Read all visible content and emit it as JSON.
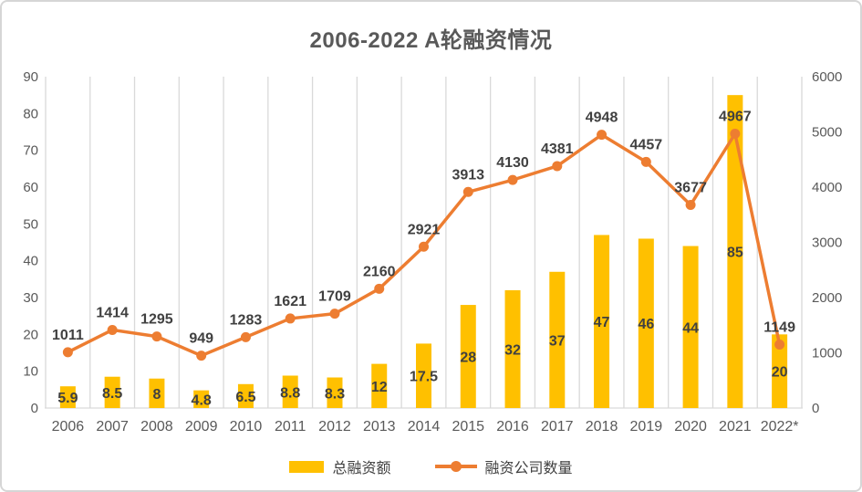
{
  "title": "2006-2022 A轮融资情况",
  "colors": {
    "bar": "#FFC000",
    "line": "#ED7D31",
    "gridline": "#D9D9D9",
    "axis_text": "#595959",
    "data_label_text": "#404040",
    "border": "#D6D6D6"
  },
  "chart_data": {
    "type": "bar",
    "subtype": "combo-bar-line-dual-axis",
    "title": "2006-2022 A轮融资情况",
    "categories": [
      "2006",
      "2007",
      "2008",
      "2009",
      "2010",
      "2011",
      "2012",
      "2013",
      "2014",
      "2015",
      "2016",
      "2017",
      "2018",
      "2019",
      "2020",
      "2021",
      "2022*"
    ],
    "series": [
      {
        "name": "总融资额",
        "type": "bar",
        "axis": "left",
        "color": "#FFC000",
        "values": [
          5.9,
          8.5,
          8,
          4.8,
          6.5,
          8.8,
          8.3,
          12,
          17.5,
          28,
          32,
          37,
          47,
          46,
          44,
          85,
          20
        ]
      },
      {
        "name": "融资公司数量",
        "type": "line",
        "axis": "right",
        "color": "#ED7D31",
        "values": [
          1011,
          1414,
          1295,
          949,
          1283,
          1621,
          1709,
          2160,
          2921,
          3913,
          4130,
          4381,
          4948,
          4457,
          3677,
          4967,
          1149
        ]
      }
    ],
    "axis_left": {
      "min": 0,
      "max": 90,
      "ticks": [
        0,
        10,
        20,
        30,
        40,
        50,
        60,
        70,
        80,
        90
      ]
    },
    "axis_right": {
      "min": 0,
      "max": 6000,
      "ticks": [
        0,
        1000,
        2000,
        3000,
        4000,
        5000,
        6000
      ]
    },
    "grid": "vertical-only",
    "legend_position": "bottom",
    "data_labels": {
      "bar": "inside-center",
      "line": "above"
    }
  }
}
